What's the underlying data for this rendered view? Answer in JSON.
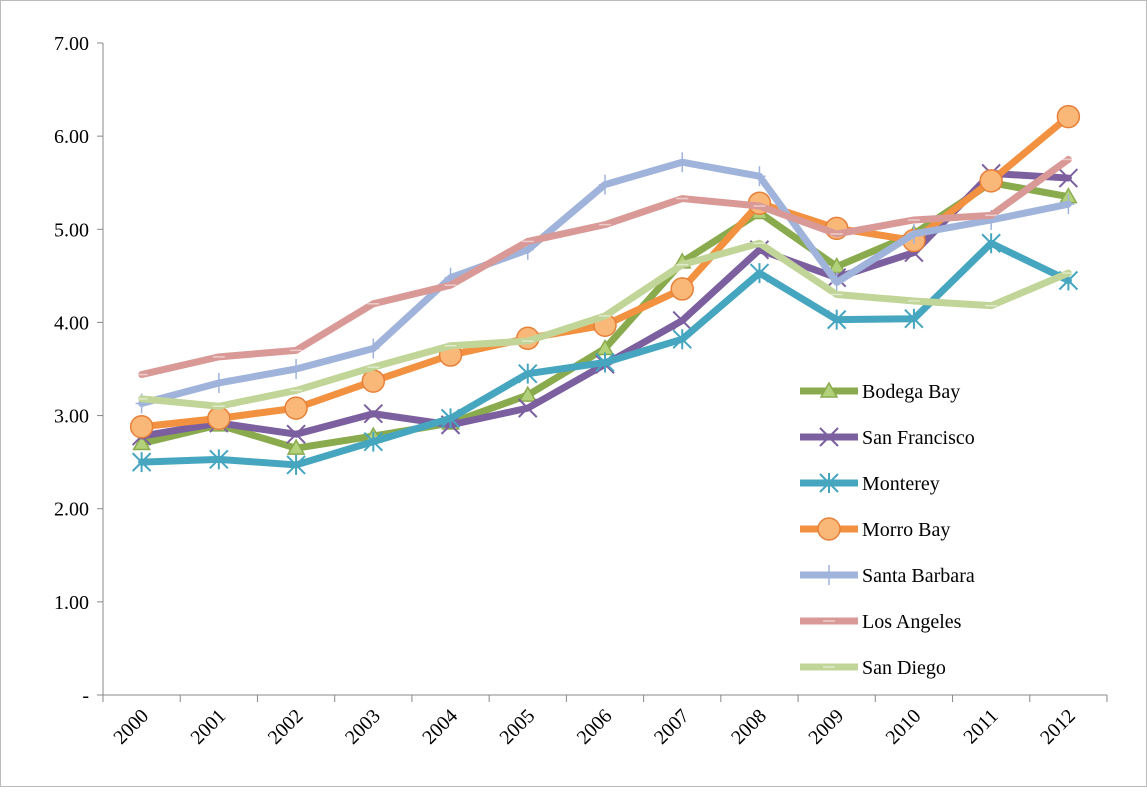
{
  "chart_data": {
    "type": "line",
    "categories": [
      "2000",
      "2001",
      "2002",
      "2003",
      "2004",
      "2005",
      "2006",
      "2007",
      "2008",
      "2009",
      "2010",
      "2011",
      "2012"
    ],
    "ylim": [
      0,
      7
    ],
    "yticks": [
      {
        "value": 0,
        "label": "-"
      },
      {
        "value": 1,
        "label": "1.00"
      },
      {
        "value": 2,
        "label": "2.00"
      },
      {
        "value": 3,
        "label": "3.00"
      },
      {
        "value": 4,
        "label": "4.00"
      },
      {
        "value": 5,
        "label": "5.00"
      },
      {
        "value": 6,
        "label": "6.00"
      },
      {
        "value": 7,
        "label": "7.00"
      }
    ],
    "grid": false,
    "legend": "right",
    "series": [
      {
        "name": "Bodega Bay",
        "color": "#8aab4d",
        "marker": "triangle",
        "values": [
          2.7,
          2.9,
          2.65,
          2.78,
          2.92,
          3.22,
          3.72,
          4.65,
          5.18,
          4.6,
          4.95,
          5.5,
          5.35
        ]
      },
      {
        "name": "San Francisco",
        "color": "#7c5f9e",
        "marker": "x",
        "values": [
          2.78,
          2.92,
          2.8,
          3.02,
          2.9,
          3.08,
          3.55,
          4.02,
          4.78,
          4.48,
          4.75,
          5.6,
          5.55
        ]
      },
      {
        "name": "Monterey",
        "color": "#46a6c0",
        "marker": "asterisk",
        "values": [
          2.5,
          2.53,
          2.47,
          2.72,
          2.97,
          3.45,
          3.57,
          3.82,
          4.53,
          4.03,
          4.04,
          4.85,
          4.45
        ]
      },
      {
        "name": "Morro Bay",
        "color": "#f2913f",
        "marker": "circle",
        "values": [
          2.88,
          2.97,
          3.08,
          3.37,
          3.65,
          3.83,
          3.97,
          4.36,
          5.28,
          5.01,
          4.88,
          5.52,
          6.21
        ]
      },
      {
        "name": "Santa Barbara",
        "color": "#9fb3db",
        "marker": "plus",
        "values": [
          3.13,
          3.35,
          3.5,
          3.72,
          4.48,
          4.78,
          5.48,
          5.72,
          5.57,
          4.43,
          4.95,
          5.1,
          5.27
        ]
      },
      {
        "name": "Los Angeles",
        "color": "#d99a97",
        "marker": "dash",
        "values": [
          3.44,
          3.63,
          3.7,
          4.2,
          4.4,
          4.87,
          5.05,
          5.33,
          5.25,
          4.95,
          5.1,
          5.15,
          5.75
        ]
      },
      {
        "name": "San Diego",
        "color": "#c1d598",
        "marker": "dash",
        "values": [
          3.18,
          3.1,
          3.27,
          3.52,
          3.75,
          3.8,
          4.07,
          4.62,
          4.85,
          4.3,
          4.23,
          4.18,
          4.53
        ]
      }
    ]
  }
}
